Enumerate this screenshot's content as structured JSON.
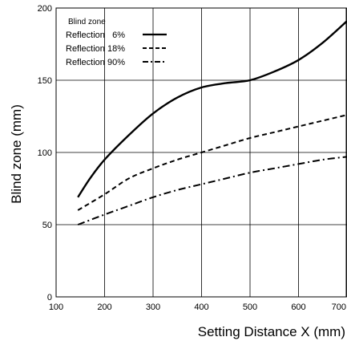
{
  "chart_data": {
    "type": "line",
    "title": "",
    "xlabel": "Setting Distance X (mm)",
    "ylabel": "Blind zone (mm)",
    "xlim": [
      100,
      700
    ],
    "ylim": [
      0,
      200
    ],
    "xticks": [
      100,
      200,
      300,
      400,
      500,
      600,
      700
    ],
    "yticks": [
      0,
      50,
      100,
      150,
      200
    ],
    "grid": true,
    "legend": {
      "title": "Blind zone",
      "placement": "top-left"
    },
    "series": [
      {
        "name": "Reflection   6%",
        "line_style": "solid",
        "x": [
          145,
          170,
          200,
          250,
          300,
          350,
          400,
          450,
          500,
          550,
          600,
          650,
          700
        ],
        "y": [
          69,
          82,
          95,
          112,
          127,
          138,
          145,
          148,
          150,
          156,
          164,
          176,
          191
        ]
      },
      {
        "name": "Reflection 18%",
        "line_style": "dashed",
        "x": [
          145,
          200,
          250,
          300,
          350,
          400,
          450,
          500,
          550,
          600,
          650,
          700
        ],
        "y": [
          60,
          71,
          82,
          89,
          95,
          100,
          105,
          110,
          114,
          118,
          122,
          126
        ]
      },
      {
        "name": "Reflection 90%",
        "line_style": "dashdot",
        "x": [
          145,
          200,
          250,
          300,
          350,
          400,
          450,
          500,
          550,
          600,
          650,
          700
        ],
        "y": [
          50,
          57,
          63,
          69,
          74,
          78,
          82,
          86,
          89,
          92,
          95,
          97
        ]
      }
    ]
  }
}
